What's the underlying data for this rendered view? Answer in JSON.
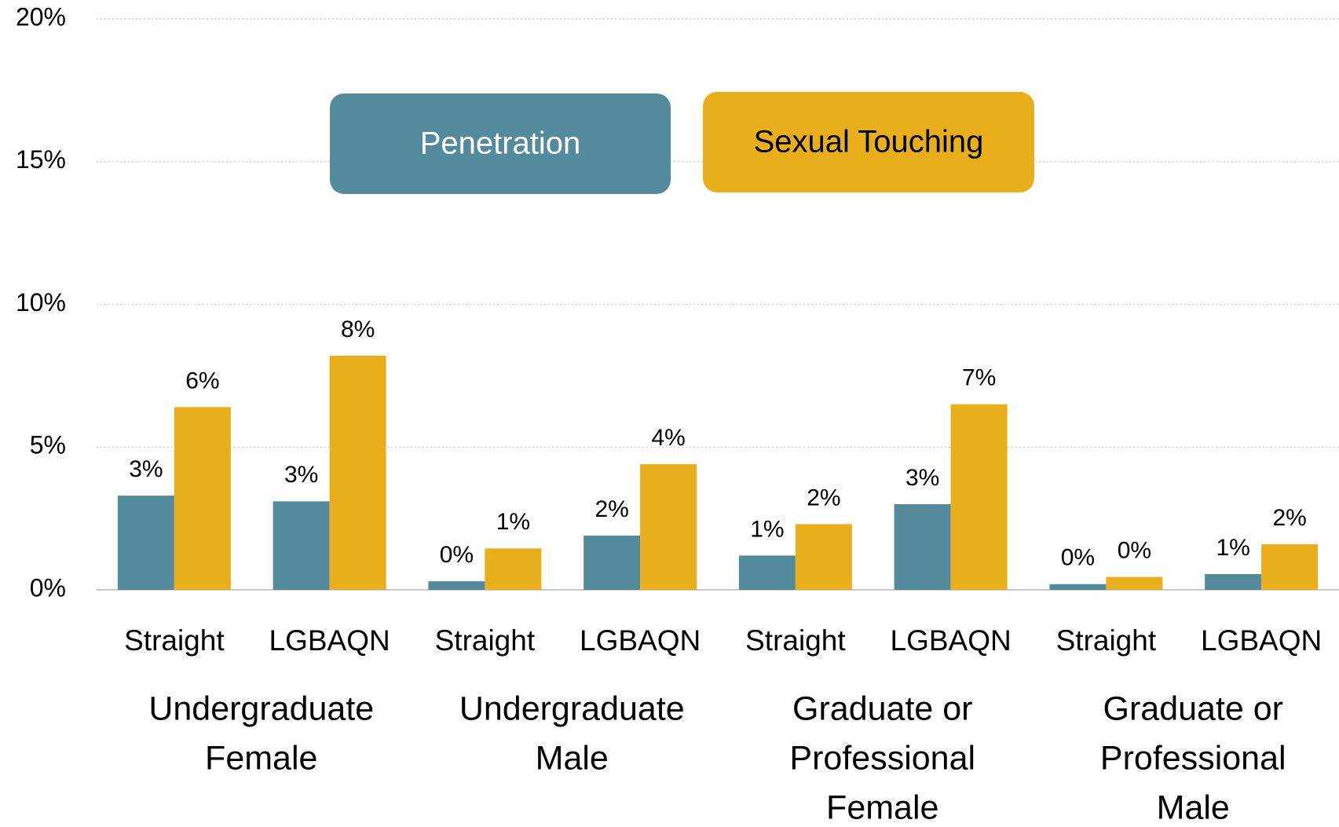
{
  "chart_data": {
    "type": "bar",
    "categories": [
      "Straight",
      "LGBAQN",
      "Straight",
      "LGBAQN",
      "Straight",
      "LGBAQN",
      "Straight",
      "LGBAQN"
    ],
    "groups": [
      {
        "lines": [
          "Undergraduate",
          "Female"
        ]
      },
      {
        "lines": [
          "Undergraduate",
          "Male"
        ]
      },
      {
        "lines": [
          "Graduate or",
          "Professional",
          "Female"
        ]
      },
      {
        "lines": [
          "Graduate or",
          "Professional",
          "Male"
        ]
      }
    ],
    "series": [
      {
        "name": "Penetration",
        "color": "#548b9c",
        "values": [
          3.3,
          3.1,
          0.3,
          1.9,
          1.2,
          3.0,
          0.2,
          0.55
        ],
        "value_labels": [
          "3%",
          "3%",
          "0%",
          "2%",
          "1%",
          "3%",
          "0%",
          "1%"
        ]
      },
      {
        "name": "Sexual Touching",
        "color": "#e8ae1c",
        "values": [
          6.4,
          8.2,
          1.45,
          4.4,
          2.3,
          6.5,
          0.45,
          1.6
        ],
        "value_labels": [
          "6%",
          "8%",
          "1%",
          "4%",
          "2%",
          "7%",
          "0%",
          "2%"
        ]
      }
    ],
    "ylim": [
      0,
      20
    ],
    "yticks": [
      {
        "value": 0,
        "label": "0%"
      },
      {
        "value": 5,
        "label": "5%"
      },
      {
        "value": 10,
        "label": "10%"
      },
      {
        "value": 15,
        "label": "15%"
      },
      {
        "value": 20,
        "label": "20%"
      }
    ],
    "grid": true
  }
}
